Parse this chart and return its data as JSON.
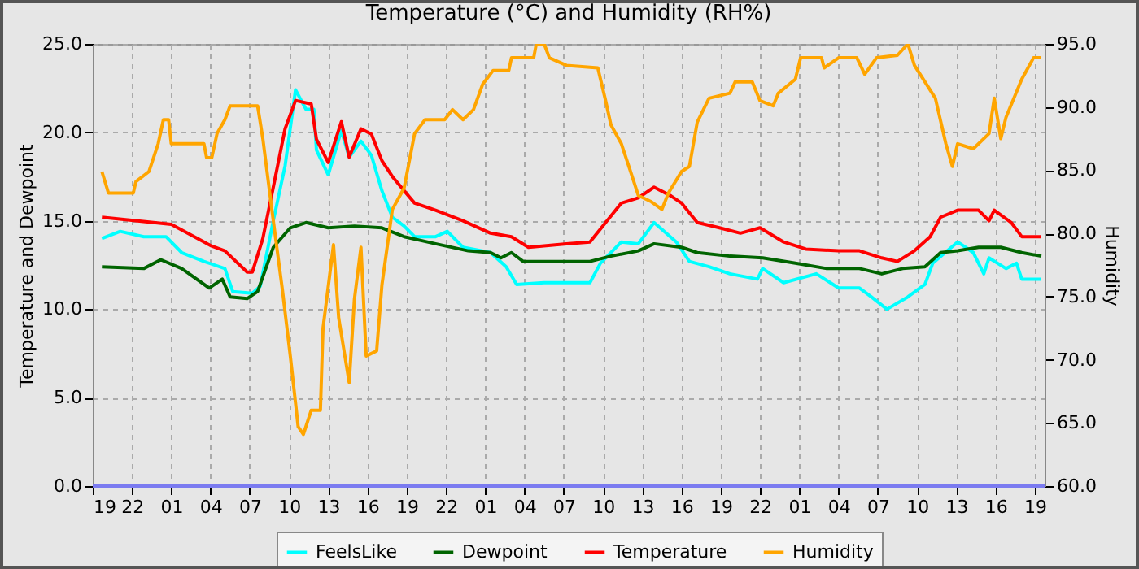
{
  "chart_data": {
    "type": "line",
    "title": "Temperature (°C) and Humidity (RH%)",
    "ylabel": "Temperature and Dewpoint",
    "y2label": "Humidity",
    "xlim": [
      "--01-01T19:00",
      "--01-04T19:45"
    ],
    "xticks": [
      {
        "value": "--01-01T19:00",
        "label": "19"
      },
      {
        "value": "--01-01T22:00",
        "label": "22"
      },
      {
        "value": "--01-02T01:00",
        "label": "01"
      },
      {
        "value": "--01-02T04:00",
        "label": "04"
      },
      {
        "value": "--01-02T07:00",
        "label": "07"
      },
      {
        "value": "--01-02T10:00",
        "label": "10"
      },
      {
        "value": "--01-02T13:00",
        "label": "13"
      },
      {
        "value": "--01-02T16:00",
        "label": "16"
      },
      {
        "value": "--01-02T19:00",
        "label": "19"
      },
      {
        "value": "--01-02T22:00",
        "label": "22"
      },
      {
        "value": "--01-03T01:00",
        "label": "01"
      },
      {
        "value": "--01-03T04:00",
        "label": "04"
      },
      {
        "value": "--01-03T07:00",
        "label": "07"
      },
      {
        "value": "--01-03T10:00",
        "label": "10"
      },
      {
        "value": "--01-03T13:00",
        "label": "13"
      },
      {
        "value": "--01-03T16:00",
        "label": "16"
      },
      {
        "value": "--01-03T19:00",
        "label": "19"
      },
      {
        "value": "--01-03T22:00",
        "label": "22"
      },
      {
        "value": "--01-04T01:00",
        "label": "01"
      },
      {
        "value": "--01-04T04:00",
        "label": "04"
      },
      {
        "value": "--01-04T07:00",
        "label": "07"
      },
      {
        "value": "--01-04T10:00",
        "label": "10"
      },
      {
        "value": "--01-04T13:00",
        "label": "13"
      },
      {
        "value": "--01-04T16:00",
        "label": "16"
      },
      {
        "value": "--01-04T19:00",
        "label": "19"
      }
    ],
    "ylim": [
      0,
      25
    ],
    "yticks": [
      {
        "value": 0,
        "label": "0.0"
      },
      {
        "value": 5,
        "label": "5.0"
      },
      {
        "value": 10,
        "label": "10.0"
      },
      {
        "value": 15,
        "label": "15.0"
      },
      {
        "value": 20,
        "label": "20.0"
      },
      {
        "value": 25,
        "label": "25.0"
      }
    ],
    "y2lim": [
      60,
      95
    ],
    "y2ticks": [
      {
        "value": 60,
        "label": "60.0"
      },
      {
        "value": 65,
        "label": "65.0"
      },
      {
        "value": 70,
        "label": "70.0"
      },
      {
        "value": 75,
        "label": "75.0"
      },
      {
        "value": 80,
        "label": "80.0"
      },
      {
        "value": 85,
        "label": "85.0"
      },
      {
        "value": 90,
        "label": "90.0"
      },
      {
        "value": 95,
        "label": "95.0"
      }
    ],
    "grid": true,
    "legend": "bottom",
    "line_style": "solid",
    "ref_lines": [
      {
        "axis": "y",
        "value": 0,
        "color": "#7b7bf0"
      }
    ],
    "series": [
      {
        "name": "FeelsLike",
        "color": "#00ffff",
        "x": [
          "--01-01T19:42",
          "--01-01T21:06",
          "--01-01T22:54",
          "--01-02T00:36",
          "--01-02T01:48",
          "--01-02T03:30",
          "--01-02T05:06",
          "--01-02T05:42",
          "--01-02T07:12",
          "--01-02T07:48",
          "--01-02T08:48",
          "--01-02T09:42",
          "--01-02T10:30",
          "--01-02T11:18",
          "--01-02T11:54",
          "--01-02T12:06",
          "--01-02T13:00",
          "--01-02T14:00",
          "--01-02T14:36",
          "--01-02T15:30",
          "--01-02T16:18",
          "--01-02T17:06",
          "--01-02T17:54",
          "--01-02T18:48",
          "--01-02T19:36",
          "--01-02T21:12",
          "--01-02T22:06",
          "--01-02T23:18",
          "--01-03T01:24",
          "--01-03T02:36",
          "--01-03T03:24",
          "--01-03T05:30",
          "--01-03T07:12",
          "--01-03T09:00",
          "--01-03T09:48",
          "--01-03T11:24",
          "--01-03T12:42",
          "--01-03T13:54",
          "--01-03T15:36",
          "--01-03T16:36",
          "--01-03T18:06",
          "--01-03T19:42",
          "--01-03T21:48",
          "--01-03T22:12",
          "--01-03T23:48",
          "--01-04T02:18",
          "--01-04T04:00",
          "--01-04T05:36",
          "--01-04T06:30",
          "--01-04T07:42",
          "--01-04T09:18",
          "--01-04T10:36",
          "--01-04T11:12",
          "--01-04T13:06",
          "--01-04T14:18",
          "--01-04T15:06",
          "--01-04T15:30",
          "--01-04T16:48",
          "--01-04T17:36",
          "--01-04T18:00",
          "--01-04T19:30"
        ],
        "values": [
          14.0,
          14.4,
          14.1,
          14.1,
          13.2,
          12.7,
          12.3,
          11.0,
          10.9,
          11.3,
          15.0,
          18.1,
          22.4,
          21.3,
          21.3,
          19.0,
          17.6,
          20.1,
          18.6,
          19.5,
          18.7,
          16.7,
          15.2,
          14.7,
          14.1,
          14.1,
          14.4,
          13.5,
          13.2,
          12.4,
          11.4,
          11.5,
          11.5,
          11.5,
          12.6,
          13.8,
          13.7,
          14.9,
          13.8,
          12.7,
          12.4,
          12.0,
          11.7,
          12.3,
          11.5,
          12.0,
          11.2,
          11.2,
          10.7,
          10.0,
          10.7,
          11.4,
          12.6,
          13.8,
          13.2,
          12.0,
          12.9,
          12.3,
          12.6,
          11.7,
          11.7
        ]
      },
      {
        "name": "Dewpoint",
        "color": "#006400",
        "x": [
          "--01-01T19:42",
          "--01-01T22:54",
          "--01-02T00:12",
          "--01-02T01:48",
          "--01-02T03:54",
          "--01-02T04:54",
          "--01-02T05:30",
          "--01-02T06:48",
          "--01-02T07:36",
          "--01-02T08:48",
          "--01-02T10:06",
          "--01-02T11:18",
          "--01-02T13:00",
          "--01-02T15:00",
          "--01-02T17:06",
          "--01-02T18:48",
          "--01-02T21:12",
          "--01-02T23:42",
          "--01-03T01:24",
          "--01-03T02:12",
          "--01-03T03:00",
          "--01-03T03:54",
          "--01-03T07:00",
          "--01-03T09:00",
          "--01-03T10:36",
          "--01-03T12:42",
          "--01-03T13:54",
          "--01-03T16:00",
          "--01-03T17:12",
          "--01-03T19:42",
          "--01-03T22:12",
          "--01-04T00:42",
          "--01-04T03:06",
          "--01-04T05:36",
          "--01-04T07:18",
          "--01-04T08:54",
          "--01-04T10:36",
          "--01-04T11:48",
          "--01-04T13:06",
          "--01-04T14:42",
          "--01-04T16:24",
          "--01-04T18:00",
          "--01-04T19:30"
        ],
        "values": [
          12.4,
          12.3,
          12.8,
          12.3,
          11.2,
          11.7,
          10.7,
          10.6,
          11.0,
          13.5,
          14.6,
          14.9,
          14.6,
          14.7,
          14.6,
          14.1,
          13.7,
          13.3,
          13.2,
          12.9,
          13.2,
          12.7,
          12.7,
          12.7,
          13.0,
          13.3,
          13.7,
          13.5,
          13.2,
          13.0,
          12.9,
          12.6,
          12.3,
          12.3,
          12.0,
          12.3,
          12.4,
          13.2,
          13.3,
          13.5,
          13.5,
          13.2,
          13.0
        ]
      },
      {
        "name": "Temperature",
        "color": "#ff0000",
        "x": [
          "--01-01T19:42",
          "--01-02T01:00",
          "--01-02T04:00",
          "--01-02T05:06",
          "--01-02T06:48",
          "--01-02T07:12",
          "--01-02T08:00",
          "--01-02T08:48",
          "--01-02T09:42",
          "--01-02T10:30",
          "--01-02T11:42",
          "--01-02T12:06",
          "--01-02T13:00",
          "--01-02T14:00",
          "--01-02T14:36",
          "--01-02T15:30",
          "--01-02T16:18",
          "--01-02T17:06",
          "--01-02T17:54",
          "--01-02T18:48",
          "--01-02T19:36",
          "--01-02T21:12",
          "--01-02T23:18",
          "--01-03T01:24",
          "--01-03T03:00",
          "--01-03T04:18",
          "--01-03T07:12",
          "--01-03T09:00",
          "--01-03T10:12",
          "--01-03T11:24",
          "--01-03T12:42",
          "--01-03T13:54",
          "--01-03T15:12",
          "--01-03T16:00",
          "--01-03T17:12",
          "--01-03T18:54",
          "--01-03T20:30",
          "--01-03T22:00",
          "--01-03T23:48",
          "--01-04T01:30",
          "--01-04T04:00",
          "--01-04T05:36",
          "--01-04T07:18",
          "--01-04T08:30",
          "--01-04T09:48",
          "--01-04T11:00",
          "--01-04T11:48",
          "--01-04T13:06",
          "--01-04T14:42",
          "--01-04T15:30",
          "--01-04T15:54",
          "--01-04T17:12",
          "--01-04T18:00",
          "--01-04T19:30"
        ],
        "values": [
          15.2,
          14.8,
          13.6,
          13.3,
          12.1,
          12.1,
          14.0,
          16.9,
          20.2,
          21.8,
          21.6,
          19.6,
          18.3,
          20.6,
          18.6,
          20.2,
          19.9,
          18.4,
          17.5,
          16.7,
          16.0,
          15.6,
          15.0,
          14.3,
          14.1,
          13.5,
          13.7,
          13.8,
          14.9,
          16.0,
          16.3,
          16.9,
          16.4,
          16.0,
          14.9,
          14.6,
          14.3,
          14.6,
          13.8,
          13.4,
          13.3,
          13.3,
          12.9,
          12.7,
          13.3,
          14.1,
          15.2,
          15.6,
          15.6,
          15.0,
          15.6,
          14.9,
          14.1,
          14.1
        ]
      },
      {
        "name": "Humidity",
        "color": "#ffa500",
        "axis": "y2",
        "x": [
          "--01-01T19:42",
          "--01-01T20:12",
          "--01-01T22:06",
          "--01-01T22:18",
          "--01-01T23:18",
          "--01-02T00:00",
          "--01-02T00:24",
          "--01-02T00:48",
          "--01-02T01:00",
          "--01-02T03:30",
          "--01-02T03:42",
          "--01-02T04:06",
          "--01-02T04:30",
          "--01-02T05:06",
          "--01-02T05:30",
          "--01-02T07:36",
          "--01-02T08:00",
          "--01-02T08:48",
          "--01-02T09:30",
          "--01-02T10:06",
          "--01-02T10:42",
          "--01-02T11:06",
          "--01-02T11:42",
          "--01-02T12:24",
          "--01-02T12:36",
          "--01-02T13:24",
          "--01-02T13:48",
          "--01-02T14:36",
          "--01-02T15:00",
          "--01-02T15:30",
          "--01-02T15:54",
          "--01-02T16:42",
          "--01-02T17:06",
          "--01-02T17:54",
          "--01-02T18:48",
          "--01-02T19:36",
          "--01-02T20:24",
          "--01-02T21:54",
          "--01-02T22:30",
          "--01-02T23:18",
          "--01-03T00:06",
          "--01-03T00:48",
          "--01-03T01:36",
          "--01-03T02:48",
          "--01-03T03:00",
          "--01-03T04:42",
          "--01-03T04:54",
          "--01-03T05:30",
          "--01-03T05:54",
          "--01-03T07:12",
          "--01-03T09:36",
          "--01-03T10:12",
          "--01-03T10:36",
          "--01-03T11:24",
          "--01-03T12:06",
          "--01-03T12:42",
          "--01-03T13:42",
          "--01-03T14:30",
          "--01-03T15:00",
          "--01-03T16:00",
          "--01-03T16:36",
          "--01-03T17:12",
          "--01-03T18:06",
          "--01-03T19:42",
          "--01-03T20:06",
          "--01-03T21:24",
          "--01-03T22:00",
          "--01-03T23:00",
          "--01-03T23:24",
          "--01-04T00:42",
          "--01-04T01:06",
          "--01-04T02:42",
          "--01-04T02:54",
          "--01-04T04:00",
          "--01-04T05:24",
          "--01-04T06:00",
          "--01-04T06:54",
          "--01-04T08:30",
          "--01-04T09:18",
          "--01-04T09:48",
          "--01-04T11:24",
          "--01-04T12:12",
          "--01-04T12:42",
          "--01-04T13:06",
          "--01-04T14:18",
          "--01-04T15:30",
          "--01-04T15:54",
          "--01-04T16:24",
          "--01-04T16:48",
          "--01-04T18:00",
          "--01-04T18:54",
          "--01-04T19:30"
        ],
        "values": [
          84.9,
          83.2,
          83.2,
          84.1,
          84.9,
          87.1,
          89.0,
          89.0,
          87.1,
          87.1,
          86.0,
          86.0,
          87.9,
          89.0,
          90.1,
          90.1,
          87.5,
          81.0,
          75.5,
          70.3,
          64.7,
          64.1,
          66.0,
          66.0,
          72.5,
          79.1,
          73.3,
          68.2,
          74.8,
          78.9,
          70.3,
          70.7,
          75.9,
          81.9,
          83.6,
          87.9,
          89.0,
          89.0,
          89.8,
          89.0,
          89.8,
          91.8,
          92.9,
          92.9,
          93.9,
          93.9,
          95.0,
          95.0,
          93.9,
          93.3,
          93.1,
          90.5,
          88.6,
          87.1,
          84.9,
          83.0,
          82.5,
          81.9,
          83.2,
          84.9,
          85.3,
          88.8,
          90.7,
          91.1,
          92.0,
          92.0,
          90.5,
          90.1,
          91.1,
          92.2,
          93.9,
          93.9,
          93.1,
          93.9,
          93.9,
          92.6,
          93.9,
          94.1,
          95.0,
          93.3,
          90.7,
          87.1,
          85.3,
          87.1,
          86.7,
          87.9,
          90.7,
          87.5,
          89.2,
          92.2,
          93.9,
          93.9
        ]
      }
    ]
  }
}
